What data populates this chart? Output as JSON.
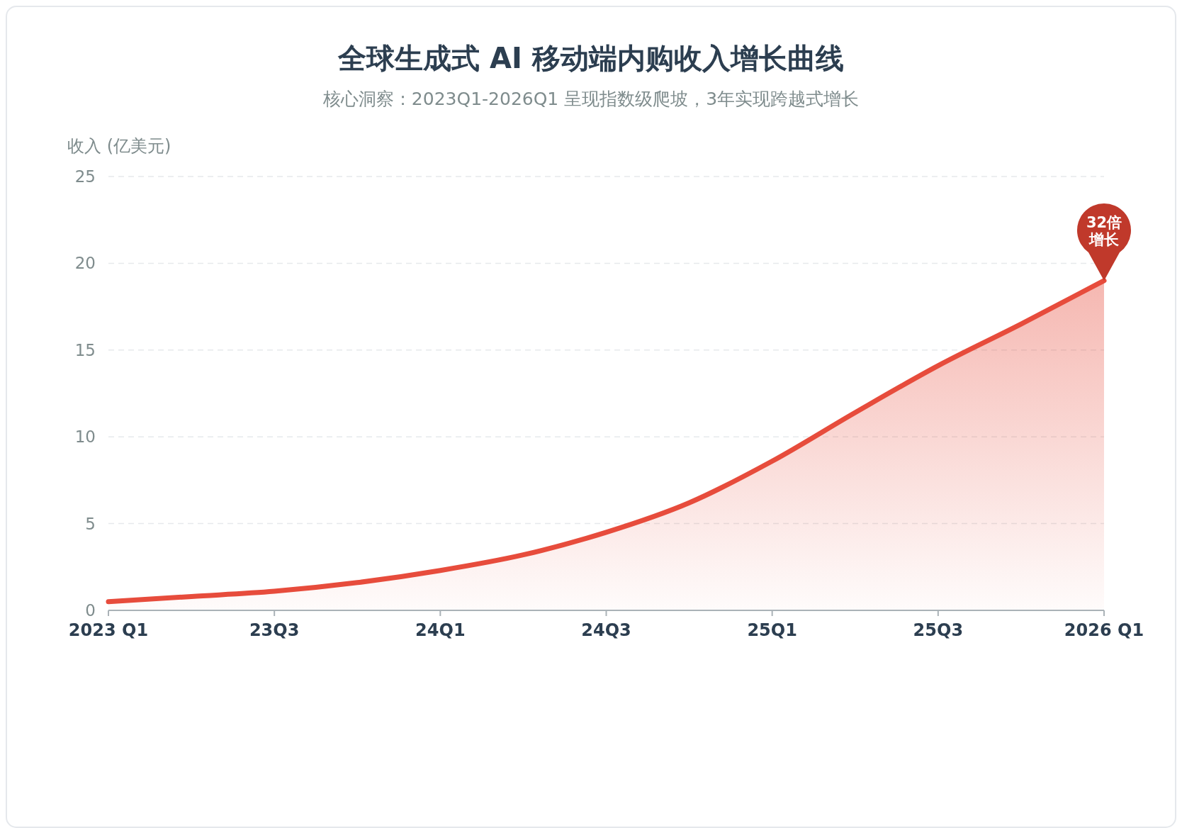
{
  "chart_data": {
    "type": "area",
    "title": "全球生成式 AI 移动端内购收入增长曲线",
    "subtitle": "核心洞察：2023Q1-2026Q1 呈现指数级爬坡，3年实现跨越式增长",
    "ylabel": "收入 (亿美元)",
    "categories": [
      "2023 Q1",
      null,
      "23Q3",
      null,
      "24Q1",
      null,
      "24Q3",
      null,
      "25Q1",
      null,
      "25Q3",
      null,
      "2026 Q1"
    ],
    "series": [
      {
        "color": "#e74c3c",
        "values": [
          0.5,
          0.8,
          1.1,
          1.6,
          2.3,
          3.2,
          4.5,
          6.2,
          8.6,
          11.4,
          14.1,
          16.5,
          19.0
        ]
      }
    ],
    "ylim": [
      0,
      25
    ],
    "yticks": [
      0,
      5,
      10,
      15,
      20,
      25
    ],
    "grid": "y",
    "marker": "none",
    "line_style": "solid",
    "annotations": [
      {
        "text": "32倍增长",
        "x": "2026 Q1",
        "y": 19
      }
    ]
  }
}
